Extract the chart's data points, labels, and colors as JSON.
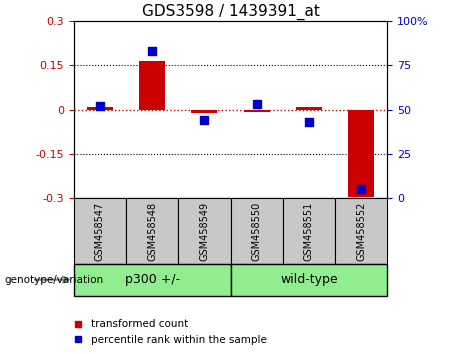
{
  "title": "GDS3598 / 1439391_at",
  "samples": [
    "GSM458547",
    "GSM458548",
    "GSM458549",
    "GSM458550",
    "GSM458551",
    "GSM458552"
  ],
  "red_bars": [
    0.01,
    0.165,
    -0.012,
    -0.008,
    0.008,
    -0.295
  ],
  "blue_dots": [
    52,
    83,
    44,
    53,
    43,
    5
  ],
  "ylim_left": [
    -0.3,
    0.3
  ],
  "ylim_right": [
    0,
    100
  ],
  "yticks_left": [
    -0.3,
    -0.15,
    0,
    0.15,
    0.3
  ],
  "yticks_right": [
    0,
    25,
    50,
    75,
    100
  ],
  "group_bg_color": "#C8C8C8",
  "group_bar_color": "#90EE90",
  "red_color": "#CC0000",
  "blue_color": "#0000CC",
  "title_fontsize": 11,
  "tick_fontsize": 8,
  "bar_width": 0.5,
  "dot_size": 35,
  "group1_label": "p300 +/-",
  "group2_label": "wild-type"
}
